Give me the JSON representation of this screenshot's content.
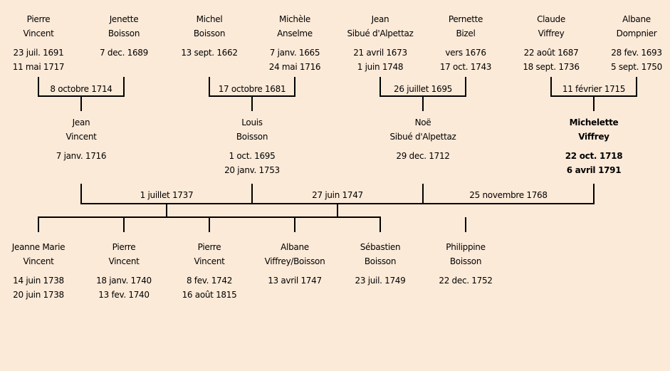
{
  "top_couples": [
    {
      "a": {
        "first": "Pierre",
        "last": "Vincent",
        "dates": [
          "23 juil. 1691",
          "11 mai 1717"
        ]
      },
      "b": {
        "first": "Jenette",
        "last": "Boisson",
        "dates": [
          "7 dec. 1689"
        ]
      },
      "marriage": "8 octobre 1714"
    },
    {
      "a": {
        "first": "Michel",
        "last": "Boisson",
        "dates": [
          "13 sept. 1662"
        ]
      },
      "b": {
        "first": "Michèle",
        "last": "Anselme",
        "dates": [
          "7 janv. 1665",
          "24 mai 1716"
        ]
      },
      "marriage": "17 octobre 1681"
    },
    {
      "a": {
        "first": "Jean",
        "last": "Sibué d'Alpettaz",
        "dates": [
          "21 avril 1673",
          "1 juin 1748"
        ]
      },
      "b": {
        "first": "Pernette",
        "last": "Bizel",
        "dates": [
          "vers 1676",
          "17 oct. 1743"
        ]
      },
      "marriage": "26 juillet 1695"
    },
    {
      "a": {
        "first": "Claude",
        "last": "Viffrey",
        "dates": [
          "22 août 1687",
          "18 sept. 1736"
        ]
      },
      "b": {
        "first": "Albane",
        "last": "Dompnier",
        "dates": [
          "28 fev. 1693",
          "5 sept. 1750"
        ]
      },
      "marriage": "11 février 1715"
    }
  ],
  "parents": [
    {
      "first": "Jean",
      "last": "Vincent",
      "dates": [
        "7 janv. 1716"
      ]
    },
    {
      "first": "Louis",
      "last": "Boisson",
      "dates": [
        "1 oct. 1695",
        "20 janv. 1753"
      ]
    },
    {
      "first": "Noë",
      "last": "Sibué d'Alpettaz",
      "dates": [
        "29 dec. 1712"
      ]
    },
    {
      "first": "Michelette",
      "last": "Viffrey",
      "dates": [
        "22 oct. 1718",
        "6 avril 1791"
      ],
      "highlighted": true
    }
  ],
  "marriages": [
    "1 juillet 1737",
    "27 juin 1747",
    "25 novembre 1768"
  ],
  "children": [
    {
      "first": "Jeanne Marie",
      "last": "Vincent",
      "dates": [
        "14 juin 1738",
        "20 juin 1738"
      ]
    },
    {
      "first": "Pierre",
      "last": "Vincent",
      "dates": [
        "18 janv. 1740",
        "13 fev. 1740"
      ]
    },
    {
      "first": "Pierre",
      "last": "Vincent",
      "dates": [
        "8 fev. 1742",
        "16 août 1815"
      ]
    },
    {
      "first": "Albane",
      "last": "Viffrey/Boisson",
      "dates": [
        "13 avril 1747"
      ]
    },
    {
      "first": "Sébastien",
      "last": "Boisson",
      "dates": [
        "23 juil. 1749"
      ]
    },
    {
      "first": "Philippine",
      "last": "Boisson",
      "dates": [
        "22 dec. 1752"
      ]
    }
  ],
  "colors": {
    "background": "#fcead8",
    "lines": "#000000"
  }
}
